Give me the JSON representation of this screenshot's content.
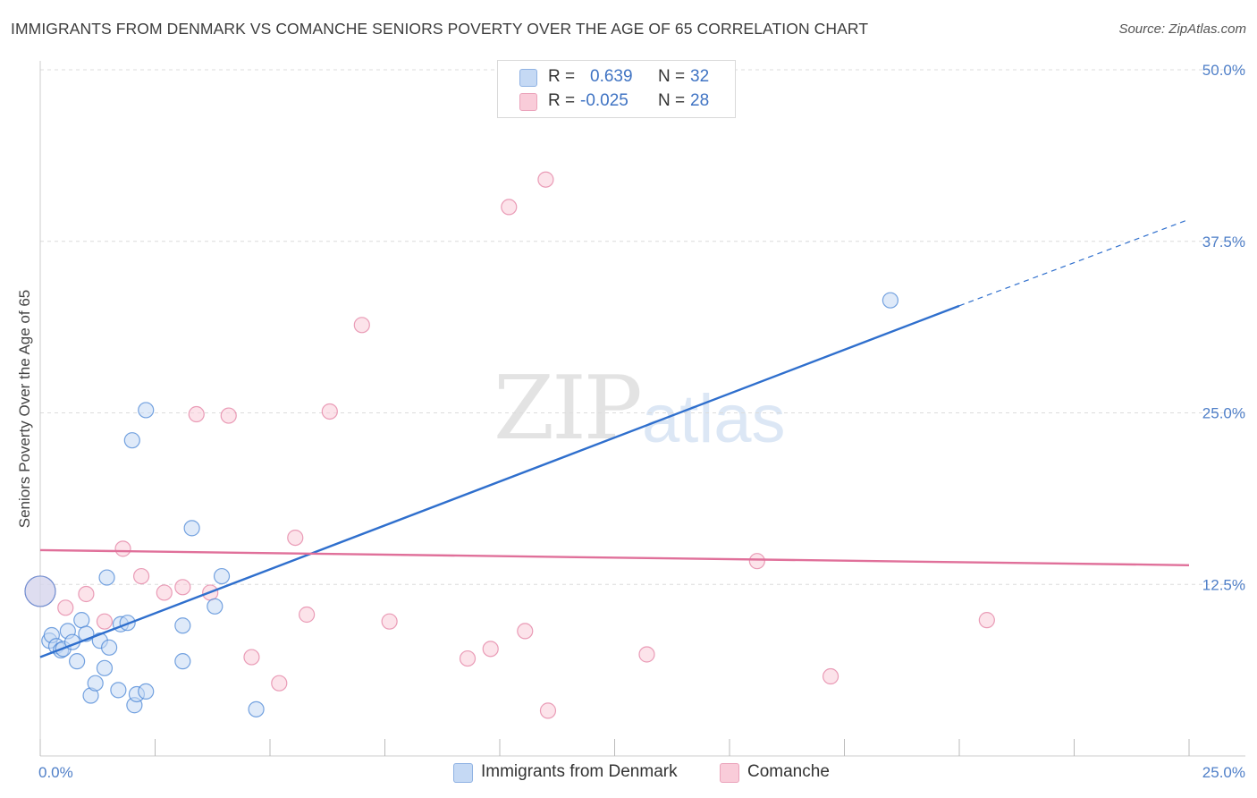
{
  "title": "IMMIGRANTS FROM DENMARK VS COMANCHE SENIORS POVERTY OVER THE AGE OF 65 CORRELATION CHART",
  "source": "Source: ZipAtlas.com",
  "watermark": {
    "zip": "ZIP",
    "atlas": "atlas"
  },
  "colors": {
    "blue": "#4a86d6",
    "blue_fill": "#c5d9f4",
    "pink": "#e37fa1",
    "pink_fill": "#f9ccd9",
    "blue_line": "#2f6fcd",
    "pink_line": "#e0709a",
    "tick": "#4f7fc8"
  },
  "legend": {
    "rows": [
      {
        "r_label": "R =",
        "r_value": "0.639",
        "n_label": "N =",
        "n_value": "32"
      },
      {
        "r_label": "R =",
        "r_value": "-0.025",
        "n_label": "N =",
        "n_value": "28"
      }
    ]
  },
  "bottom_legend": {
    "series1": "Immigrants from Denmark",
    "series2": "Comanche"
  },
  "chart_data": {
    "type": "scatter",
    "ylabel": "Seniors Poverty Over the Age of 65",
    "xlim": [
      0,
      25
    ],
    "ylim": [
      0,
      50
    ],
    "y_ticks": [
      12.5,
      25.0,
      37.5,
      50.0
    ],
    "y_tick_labels": [
      "12.5%",
      "25.0%",
      "37.5%",
      "50.0%"
    ],
    "x_tick_labels": [
      "0.0%",
      "25.0%"
    ],
    "grid": true,
    "series": [
      {
        "name": "Immigrants from Denmark",
        "points": [
          [
            0.0,
            12.0
          ],
          [
            0.2,
            8.4
          ],
          [
            0.25,
            8.8
          ],
          [
            0.35,
            8.0
          ],
          [
            0.45,
            7.7
          ],
          [
            0.5,
            7.8
          ],
          [
            0.6,
            9.1
          ],
          [
            0.7,
            8.3
          ],
          [
            0.8,
            6.9
          ],
          [
            0.9,
            9.9
          ],
          [
            1.0,
            8.9
          ],
          [
            1.1,
            4.4
          ],
          [
            1.2,
            5.3
          ],
          [
            1.3,
            8.4
          ],
          [
            1.4,
            6.4
          ],
          [
            1.45,
            13.0
          ],
          [
            1.5,
            7.9
          ],
          [
            1.7,
            4.8
          ],
          [
            1.75,
            9.6
          ],
          [
            1.9,
            9.7
          ],
          [
            2.05,
            3.7
          ],
          [
            2.1,
            4.5
          ],
          [
            2.3,
            4.7
          ],
          [
            2.0,
            23.0
          ],
          [
            2.3,
            25.2
          ],
          [
            3.1,
            6.9
          ],
          [
            3.1,
            9.5
          ],
          [
            3.3,
            16.6
          ],
          [
            3.8,
            10.9
          ],
          [
            3.95,
            13.1
          ],
          [
            4.7,
            3.4
          ],
          [
            18.5,
            33.2
          ]
        ]
      },
      {
        "name": "Comanche",
        "points": [
          [
            0.0,
            12.0
          ],
          [
            0.55,
            10.8
          ],
          [
            1.0,
            11.8
          ],
          [
            1.4,
            9.8
          ],
          [
            1.8,
            15.1
          ],
          [
            2.2,
            13.1
          ],
          [
            2.7,
            11.9
          ],
          [
            3.1,
            12.3
          ],
          [
            3.4,
            24.9
          ],
          [
            3.7,
            11.9
          ],
          [
            4.1,
            24.8
          ],
          [
            4.6,
            7.2
          ],
          [
            5.2,
            5.3
          ],
          [
            5.55,
            15.9
          ],
          [
            5.8,
            10.3
          ],
          [
            6.3,
            25.1
          ],
          [
            7.0,
            31.4
          ],
          [
            7.6,
            9.8
          ],
          [
            9.3,
            7.1
          ],
          [
            9.8,
            7.8
          ],
          [
            10.2,
            40.0
          ],
          [
            10.55,
            9.1
          ],
          [
            11.05,
            3.3
          ],
          [
            11.0,
            42.0
          ],
          [
            13.2,
            7.4
          ],
          [
            17.2,
            5.8
          ],
          [
            15.6,
            14.2
          ],
          [
            20.6,
            9.9
          ]
        ]
      }
    ],
    "trendlines": [
      {
        "series": "Immigrants from Denmark",
        "x0": 0,
        "y0": 7.2,
        "x1": 20,
        "y1": 32.8,
        "dashed_to_x": 25,
        "dashed_to_y": 39.1
      },
      {
        "series": "Comanche",
        "x0": 0,
        "y0": 15.0,
        "x1": 25,
        "y1": 13.9
      }
    ]
  }
}
